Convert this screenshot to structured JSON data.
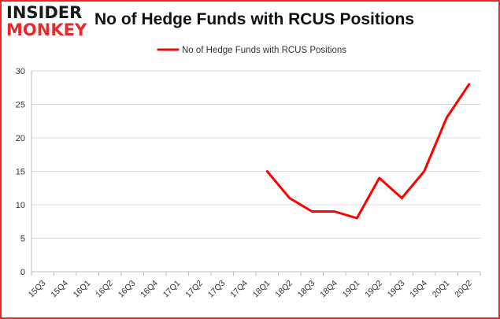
{
  "logo": {
    "line1": "INSIDER",
    "line2": "MONKEY"
  },
  "colors": {
    "accent": "#e8282a",
    "series": "#ff0000",
    "frame": "#e8282a",
    "grid": "#dcdcdc"
  },
  "chart_data": {
    "type": "line",
    "title": "No of Hedge Funds with RCUS Positions",
    "xlabel": "",
    "ylabel": "",
    "categories": [
      "15Q3",
      "15Q4",
      "16Q1",
      "16Q2",
      "16Q3",
      "16Q4",
      "17Q1",
      "17Q2",
      "17Q3",
      "17Q4",
      "18Q1",
      "18Q2",
      "18Q3",
      "18Q4",
      "19Q1",
      "19Q2",
      "19Q3",
      "19Q4",
      "20Q1",
      "20Q2"
    ],
    "series": [
      {
        "name": "No of Hedge Funds with RCUS Positions",
        "values": [
          null,
          null,
          null,
          null,
          null,
          null,
          null,
          null,
          null,
          null,
          15,
          11,
          9,
          9,
          8,
          14,
          11,
          15,
          23,
          28
        ]
      }
    ],
    "ylim": [
      0,
      30
    ],
    "yticks": [
      0,
      5,
      10,
      15,
      20,
      25,
      30
    ],
    "grid": true,
    "legend": "top-center"
  }
}
